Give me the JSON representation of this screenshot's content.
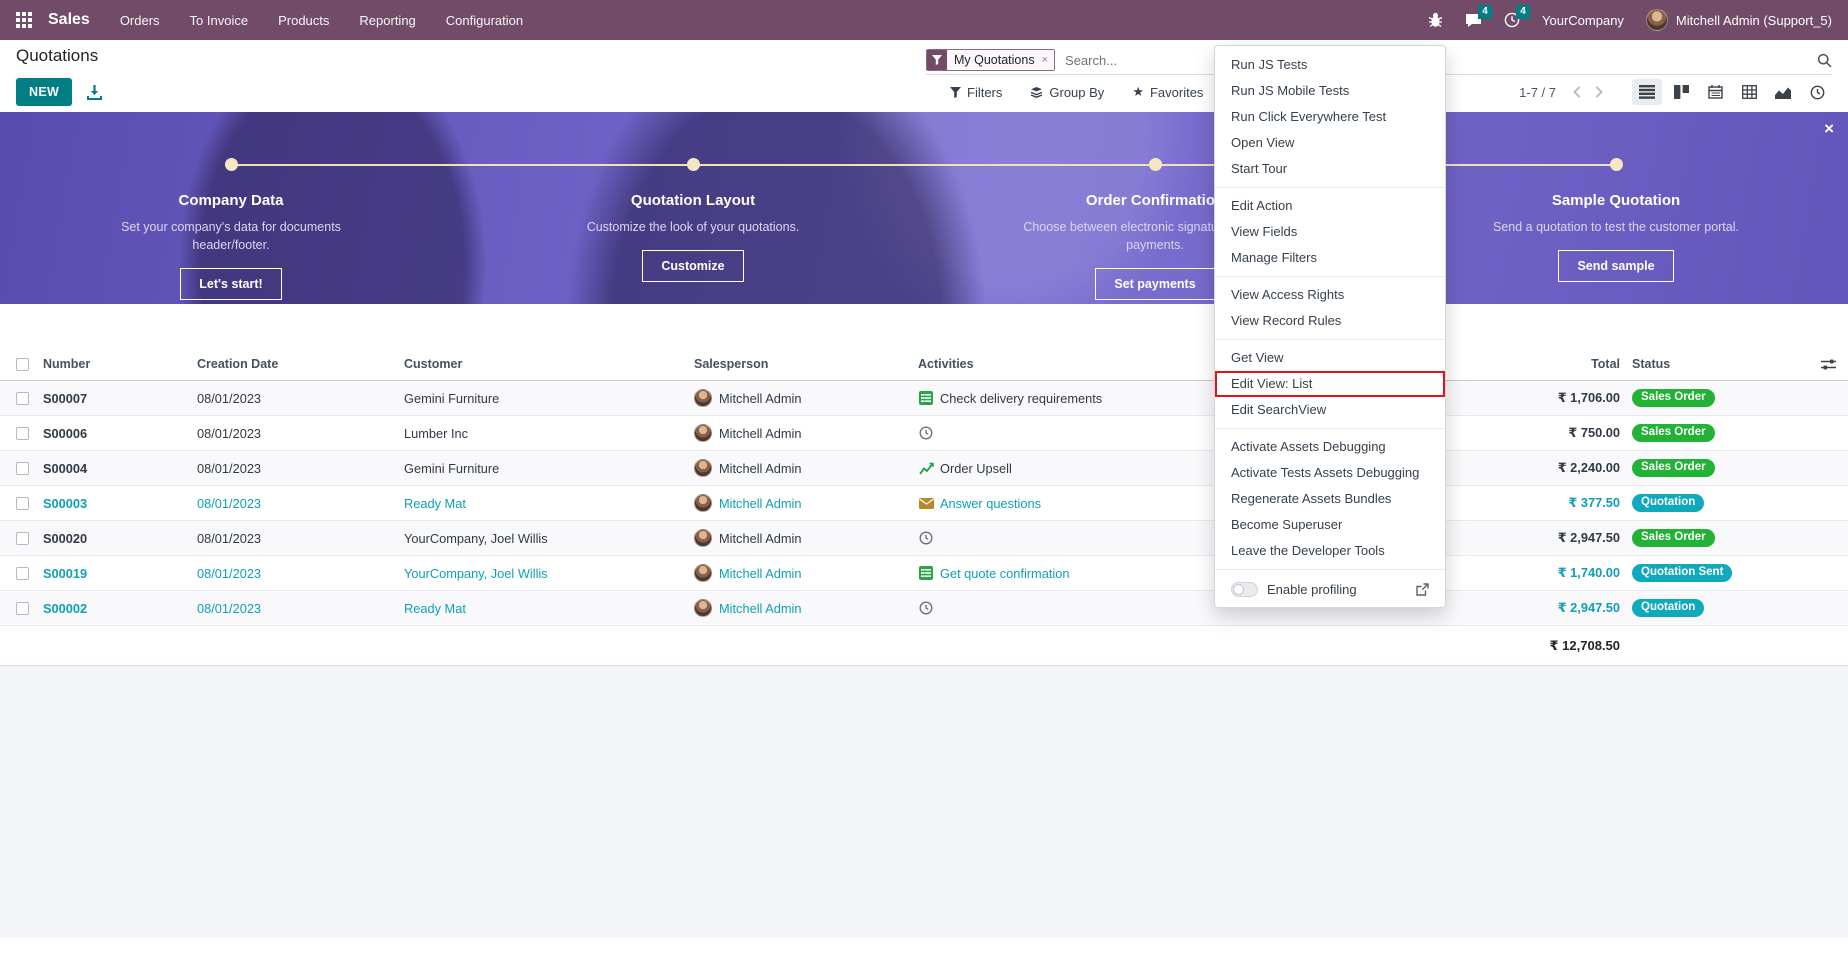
{
  "navbar": {
    "app_name": "Sales",
    "menus": [
      "Orders",
      "To Invoice",
      "Products",
      "Reporting",
      "Configuration"
    ],
    "chat_badge": "4",
    "activity_badge": "4",
    "company": "YourCompany",
    "user": "Mitchell Admin (Support_5)"
  },
  "control_panel": {
    "title": "Quotations",
    "new_button": "NEW",
    "search": {
      "facet": "My Quotations",
      "facet_remove": "×",
      "placeholder": "Search..."
    },
    "filters_label": "Filters",
    "group_by_label": "Group By",
    "favorites_label": "Favorites",
    "pager": "1-7 / 7"
  },
  "banner": {
    "close_icon": "×",
    "steps": [
      {
        "title": "Company Data",
        "description": "Set your company's data for documents header/footer.",
        "button": "Let's start!"
      },
      {
        "title": "Quotation Layout",
        "description": "Customize the look of your quotations.",
        "button": "Customize"
      },
      {
        "title": "Order Confirmation",
        "description": "Choose between electronic signatures or online payments.",
        "button": "Set payments"
      },
      {
        "title": "Sample Quotation",
        "description": "Send a quotation to test the customer portal.",
        "button": "Send sample"
      }
    ]
  },
  "table": {
    "headers": [
      "Number",
      "Creation Date",
      "Customer",
      "Salesperson",
      "Activities",
      "Total",
      "Status"
    ],
    "rows": [
      {
        "number": "S00007",
        "date": "08/01/2023",
        "customer": "Gemini Furniture",
        "salesperson": "Mitchell Admin",
        "activity": "Check delivery requirements",
        "activity_icon": "spreadsheet",
        "total": "₹ 1,706.00",
        "status": "Sales Order",
        "status_color": "success",
        "highlight": false
      },
      {
        "number": "S00006",
        "date": "08/01/2023",
        "customer": "Lumber Inc",
        "salesperson": "Mitchell Admin",
        "activity": "",
        "activity_icon": "clock",
        "total": "₹ 750.00",
        "status": "Sales Order",
        "status_color": "success",
        "highlight": false
      },
      {
        "number": "S00004",
        "date": "08/01/2023",
        "customer": "Gemini Furniture",
        "salesperson": "Mitchell Admin",
        "activity": "Order Upsell",
        "activity_icon": "chart",
        "total": "₹ 2,240.00",
        "status": "Sales Order",
        "status_color": "success",
        "highlight": false
      },
      {
        "number": "S00003",
        "date": "08/01/2023",
        "customer": "Ready Mat",
        "salesperson": "Mitchell Admin",
        "activity": "Answer questions",
        "activity_icon": "envelope",
        "total": "₹ 377.50",
        "status": "Quotation",
        "status_color": "info",
        "highlight": true
      },
      {
        "number": "S00020",
        "date": "08/01/2023",
        "customer": "YourCompany, Joel Willis",
        "salesperson": "Mitchell Admin",
        "activity": "",
        "activity_icon": "clock",
        "total": "₹ 2,947.50",
        "status": "Sales Order",
        "status_color": "success",
        "highlight": false
      },
      {
        "number": "S00019",
        "date": "08/01/2023",
        "customer": "YourCompany, Joel Willis",
        "salesperson": "Mitchell Admin",
        "activity": "Get quote confirmation",
        "activity_icon": "spreadsheet",
        "total": "₹ 1,740.00",
        "status": "Quotation Sent",
        "status_color": "info",
        "highlight": true
      },
      {
        "number": "S00002",
        "date": "08/01/2023",
        "customer": "Ready Mat",
        "salesperson": "Mitchell Admin",
        "activity": "",
        "activity_icon": "clock",
        "total": "₹ 2,947.50",
        "status": "Quotation",
        "status_color": "info",
        "highlight": true
      }
    ],
    "sum_total": "₹ 12,708.50"
  },
  "dev_menu": {
    "groups": [
      [
        "Run JS Tests",
        "Run JS Mobile Tests",
        "Run Click Everywhere Test",
        "Open View",
        "Start Tour"
      ],
      [
        "Edit Action",
        "View Fields",
        "Manage Filters"
      ],
      [
        "View Access Rights",
        "View Record Rules"
      ],
      [
        "Get View",
        "Edit View: List",
        "Edit SearchView"
      ],
      [
        "Activate Assets Debugging",
        "Activate Tests Assets Debugging",
        "Regenerate Assets Bundles",
        "Become Superuser",
        "Leave the Developer Tools"
      ]
    ],
    "highlighted_item": "Edit View: List",
    "profiling_label": "Enable profiling",
    "profiling_state": "off"
  },
  "colors": {
    "navbar_purple": "#714B67",
    "accent_teal": "#017E84",
    "badge_success": "#21b236",
    "badge_info": "#0eaabb",
    "row_highlight_teal": "#0f9fb5",
    "menu_highlight_red": "#e0131a",
    "banner_purple": "#6f63c7",
    "timeline_cream": "#f0e1ba"
  }
}
